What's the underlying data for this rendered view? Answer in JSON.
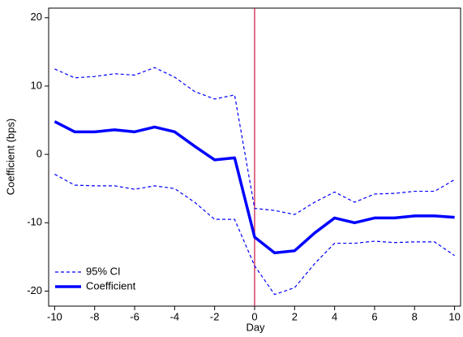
{
  "chart_data": {
    "type": "line",
    "x": [
      -10,
      -9,
      -8,
      -7,
      -6,
      -5,
      -4,
      -3,
      -2,
      -1,
      0,
      1,
      2,
      3,
      4,
      5,
      6,
      7,
      8,
      9,
      10
    ],
    "series": [
      {
        "name": "95% CI",
        "color": "#0000ff",
        "dash": true,
        "width": 1.2,
        "values": [
          12.5,
          11.2,
          11.4,
          11.8,
          11.6,
          12.7,
          11.3,
          9.2,
          8.1,
          8.7,
          -7.9,
          -8.2,
          -8.8,
          -7.0,
          -5.5,
          -7.0,
          -5.8,
          -5.7,
          -5.4,
          -5.4,
          -3.7
        ]
      },
      {
        "name": "Coefficient",
        "color": "#0000ff",
        "dash": false,
        "width": 3.5,
        "values": [
          4.8,
          3.3,
          3.3,
          3.6,
          3.3,
          4.0,
          3.3,
          1.2,
          -0.8,
          -0.5,
          -12.1,
          -14.4,
          -14.1,
          -11.5,
          -9.3,
          -10.0,
          -9.3,
          -9.3,
          -9.0,
          -9.0,
          -9.2
        ]
      }
    ],
    "lower_ci": [
      -2.9,
      -4.5,
      -4.6,
      -4.6,
      -5.1,
      -4.6,
      -5.0,
      -7.0,
      -9.5,
      -9.5,
      -16.3,
      -20.5,
      -19.5,
      -16.0,
      -13.0,
      -13.0,
      -12.7,
      -12.9,
      -12.8,
      -12.8,
      -14.8
    ],
    "x_label": "Day",
    "y_label": "Coefficient (bps)",
    "xlim": [
      -10.3,
      10.3
    ],
    "ylim": [
      -22.2,
      21.4
    ],
    "xticks": [
      -10,
      -8,
      -6,
      -4,
      -2,
      0,
      2,
      4,
      6,
      8,
      10
    ],
    "yticks": [
      -20,
      -10,
      0,
      10,
      20
    ],
    "vline": 0,
    "vline_color": "#c8103e",
    "legend": "lower-left"
  }
}
